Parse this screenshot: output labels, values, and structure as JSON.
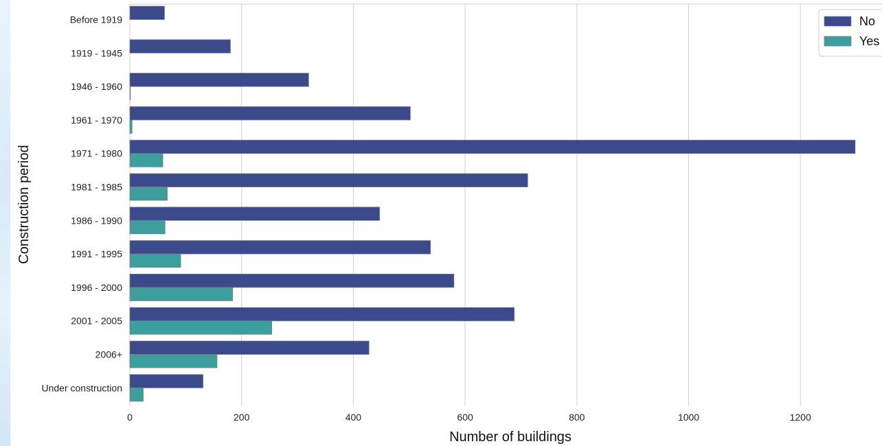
{
  "chart_data": {
    "type": "bar",
    "orientation": "horizontal",
    "title": "",
    "xlabel": "Number of buildings",
    "ylabel": "Construction period",
    "categories": [
      "Before 1919",
      "1919 - 1945",
      "1946 - 1960",
      "1961 - 1970",
      "1971 - 1980",
      "1981 - 1985",
      "1986 - 1990",
      "1991 - 1995",
      "1996 - 2000",
      "2001 - 2005",
      "2006+",
      "Under construction"
    ],
    "series": [
      {
        "name": "No",
        "color": "#3b4a8a",
        "values": [
          62,
          180,
          320,
          502,
          1298,
          712,
          447,
          538,
          580,
          688,
          428,
          131
        ]
      },
      {
        "name": "Yes",
        "color": "#3d9e9e",
        "values": [
          0,
          0,
          1,
          4,
          59,
          67,
          63,
          91,
          184,
          254,
          156,
          24
        ]
      }
    ],
    "xlim": [
      0,
      1345
    ],
    "xticks": [
      "0",
      "200",
      "400",
      "600",
      "800",
      "1000",
      "1200"
    ],
    "grid": "vertical",
    "legend_position": "top-right"
  }
}
